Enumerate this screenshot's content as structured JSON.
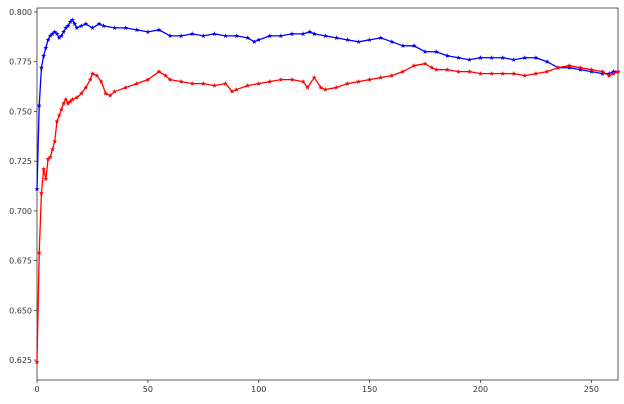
{
  "chart_data": {
    "type": "line",
    "title": "",
    "xlabel": "",
    "ylabel": "",
    "xlim": [
      0,
      262
    ],
    "ylim": [
      0.615,
      0.802
    ],
    "xticks": [
      0,
      50,
      100,
      150,
      200,
      250
    ],
    "yticks": [
      0.625,
      0.65,
      0.675,
      0.7,
      0.725,
      0.75,
      0.775,
      0.8
    ],
    "xtick_labels": [
      "0",
      "50",
      "100",
      "150",
      "200",
      "250"
    ],
    "ytick_labels": [
      "0.625",
      "0.650",
      "0.675",
      "0.700",
      "0.725",
      "0.750",
      "0.775",
      "0.800"
    ],
    "grid": false,
    "marker": "star",
    "series": [
      {
        "color": "#0000ff",
        "points": [
          [
            0,
            0.711
          ],
          [
            1,
            0.753
          ],
          [
            2,
            0.772
          ],
          [
            3,
            0.778
          ],
          [
            4,
            0.782
          ],
          [
            5,
            0.786
          ],
          [
            6,
            0.788
          ],
          [
            7,
            0.789
          ],
          [
            8,
            0.79
          ],
          [
            9,
            0.789
          ],
          [
            10,
            0.787
          ],
          [
            11,
            0.788
          ],
          [
            12,
            0.79
          ],
          [
            13,
            0.792
          ],
          [
            14,
            0.793
          ],
          [
            15,
            0.795
          ],
          [
            16,
            0.796
          ],
          [
            17,
            0.794
          ],
          [
            18,
            0.792
          ],
          [
            20,
            0.793
          ],
          [
            22,
            0.794
          ],
          [
            25,
            0.792
          ],
          [
            28,
            0.794
          ],
          [
            30,
            0.793
          ],
          [
            35,
            0.792
          ],
          [
            40,
            0.792
          ],
          [
            45,
            0.791
          ],
          [
            50,
            0.79
          ],
          [
            55,
            0.791
          ],
          [
            60,
            0.788
          ],
          [
            65,
            0.788
          ],
          [
            70,
            0.789
          ],
          [
            75,
            0.788
          ],
          [
            80,
            0.789
          ],
          [
            85,
            0.788
          ],
          [
            90,
            0.788
          ],
          [
            95,
            0.787
          ],
          [
            98,
            0.785
          ],
          [
            100,
            0.786
          ],
          [
            105,
            0.788
          ],
          [
            110,
            0.788
          ],
          [
            115,
            0.789
          ],
          [
            120,
            0.789
          ],
          [
            123,
            0.79
          ],
          [
            125,
            0.789
          ],
          [
            130,
            0.788
          ],
          [
            135,
            0.787
          ],
          [
            140,
            0.786
          ],
          [
            145,
            0.785
          ],
          [
            150,
            0.786
          ],
          [
            155,
            0.787
          ],
          [
            160,
            0.785
          ],
          [
            165,
            0.783
          ],
          [
            170,
            0.783
          ],
          [
            175,
            0.78
          ],
          [
            180,
            0.78
          ],
          [
            185,
            0.778
          ],
          [
            190,
            0.777
          ],
          [
            195,
            0.776
          ],
          [
            200,
            0.777
          ],
          [
            205,
            0.777
          ],
          [
            210,
            0.777
          ],
          [
            215,
            0.776
          ],
          [
            220,
            0.777
          ],
          [
            225,
            0.777
          ],
          [
            230,
            0.775
          ],
          [
            235,
            0.772
          ],
          [
            240,
            0.772
          ],
          [
            245,
            0.771
          ],
          [
            250,
            0.77
          ],
          [
            255,
            0.769
          ],
          [
            258,
            0.769
          ],
          [
            260,
            0.77
          ],
          [
            262,
            0.77
          ]
        ]
      },
      {
        "color": "#ff0000",
        "points": [
          [
            0,
            0.624
          ],
          [
            1,
            0.679
          ],
          [
            2,
            0.709
          ],
          [
            3,
            0.721
          ],
          [
            4,
            0.716
          ],
          [
            5,
            0.726
          ],
          [
            6,
            0.727
          ],
          [
            7,
            0.731
          ],
          [
            8,
            0.735
          ],
          [
            9,
            0.745
          ],
          [
            10,
            0.748
          ],
          [
            11,
            0.751
          ],
          [
            12,
            0.754
          ],
          [
            13,
            0.756
          ],
          [
            14,
            0.754
          ],
          [
            15,
            0.755
          ],
          [
            16,
            0.756
          ],
          [
            18,
            0.757
          ],
          [
            20,
            0.759
          ],
          [
            22,
            0.762
          ],
          [
            24,
            0.766
          ],
          [
            25,
            0.769
          ],
          [
            27,
            0.768
          ],
          [
            29,
            0.765
          ],
          [
            31,
            0.759
          ],
          [
            33,
            0.758
          ],
          [
            35,
            0.76
          ],
          [
            40,
            0.762
          ],
          [
            45,
            0.764
          ],
          [
            50,
            0.766
          ],
          [
            55,
            0.77
          ],
          [
            58,
            0.768
          ],
          [
            60,
            0.766
          ],
          [
            65,
            0.765
          ],
          [
            70,
            0.764
          ],
          [
            75,
            0.764
          ],
          [
            80,
            0.763
          ],
          [
            85,
            0.764
          ],
          [
            88,
            0.76
          ],
          [
            90,
            0.761
          ],
          [
            95,
            0.763
          ],
          [
            100,
            0.764
          ],
          [
            105,
            0.765
          ],
          [
            110,
            0.766
          ],
          [
            115,
            0.766
          ],
          [
            120,
            0.765
          ],
          [
            122,
            0.762
          ],
          [
            125,
            0.767
          ],
          [
            128,
            0.762
          ],
          [
            130,
            0.761
          ],
          [
            135,
            0.762
          ],
          [
            140,
            0.764
          ],
          [
            145,
            0.765
          ],
          [
            150,
            0.766
          ],
          [
            155,
            0.767
          ],
          [
            160,
            0.768
          ],
          [
            165,
            0.77
          ],
          [
            170,
            0.773
          ],
          [
            175,
            0.774
          ],
          [
            178,
            0.772
          ],
          [
            180,
            0.771
          ],
          [
            185,
            0.771
          ],
          [
            190,
            0.77
          ],
          [
            195,
            0.77
          ],
          [
            200,
            0.769
          ],
          [
            205,
            0.769
          ],
          [
            210,
            0.769
          ],
          [
            215,
            0.769
          ],
          [
            220,
            0.768
          ],
          [
            225,
            0.769
          ],
          [
            230,
            0.77
          ],
          [
            235,
            0.772
          ],
          [
            240,
            0.773
          ],
          [
            245,
            0.772
          ],
          [
            250,
            0.771
          ],
          [
            255,
            0.77
          ],
          [
            258,
            0.768
          ],
          [
            260,
            0.769
          ],
          [
            262,
            0.77
          ]
        ]
      }
    ]
  }
}
